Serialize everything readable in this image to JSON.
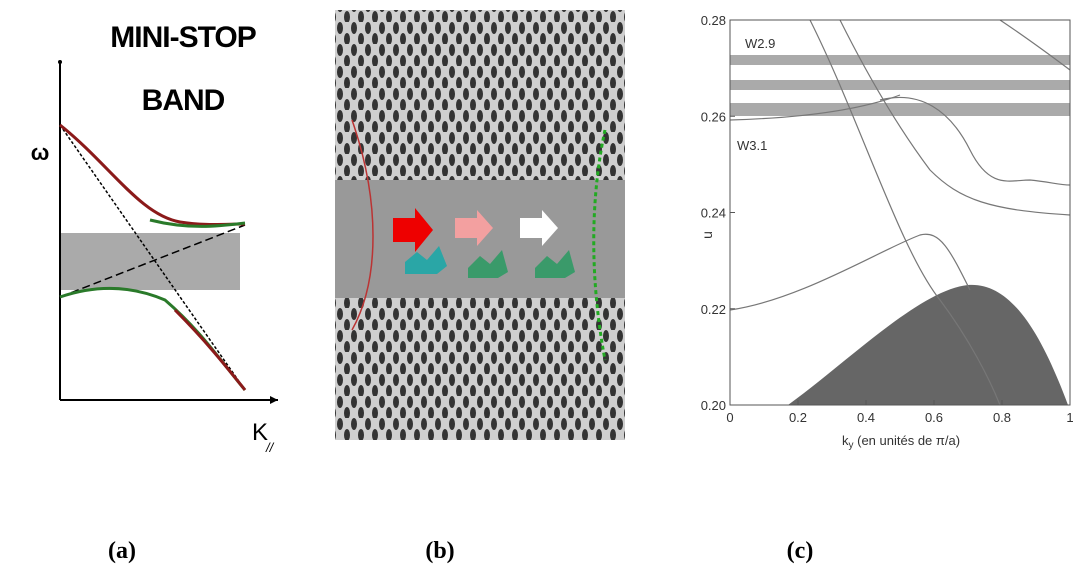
{
  "figure": {
    "panels": [
      {
        "caption": "(a)",
        "title_lines": [
          "MINI-STOP",
          "BAND"
        ],
        "y_label": "ω",
        "x_label": "K",
        "x_label_subscript": "//"
      },
      {
        "caption": "(b)"
      },
      {
        "caption": "(c)",
        "chart": {
          "type": "line",
          "y_label": "u",
          "x_label": "k",
          "x_label_subscript": "y",
          "x_label_suffix": " (en unités de π/a)",
          "annotations": [
            "W2.9",
            "W3.1"
          ],
          "xlim": [
            0,
            1
          ],
          "ylim": [
            0.2,
            0.28
          ],
          "xticks": [
            0,
            0.2,
            0.4,
            0.6,
            0.8,
            1
          ],
          "yticks": [
            {
              "value": 0.2,
              "label": "0.20"
            },
            0.22,
            0.24,
            0.26,
            0.28
          ]
        }
      }
    ]
  }
}
